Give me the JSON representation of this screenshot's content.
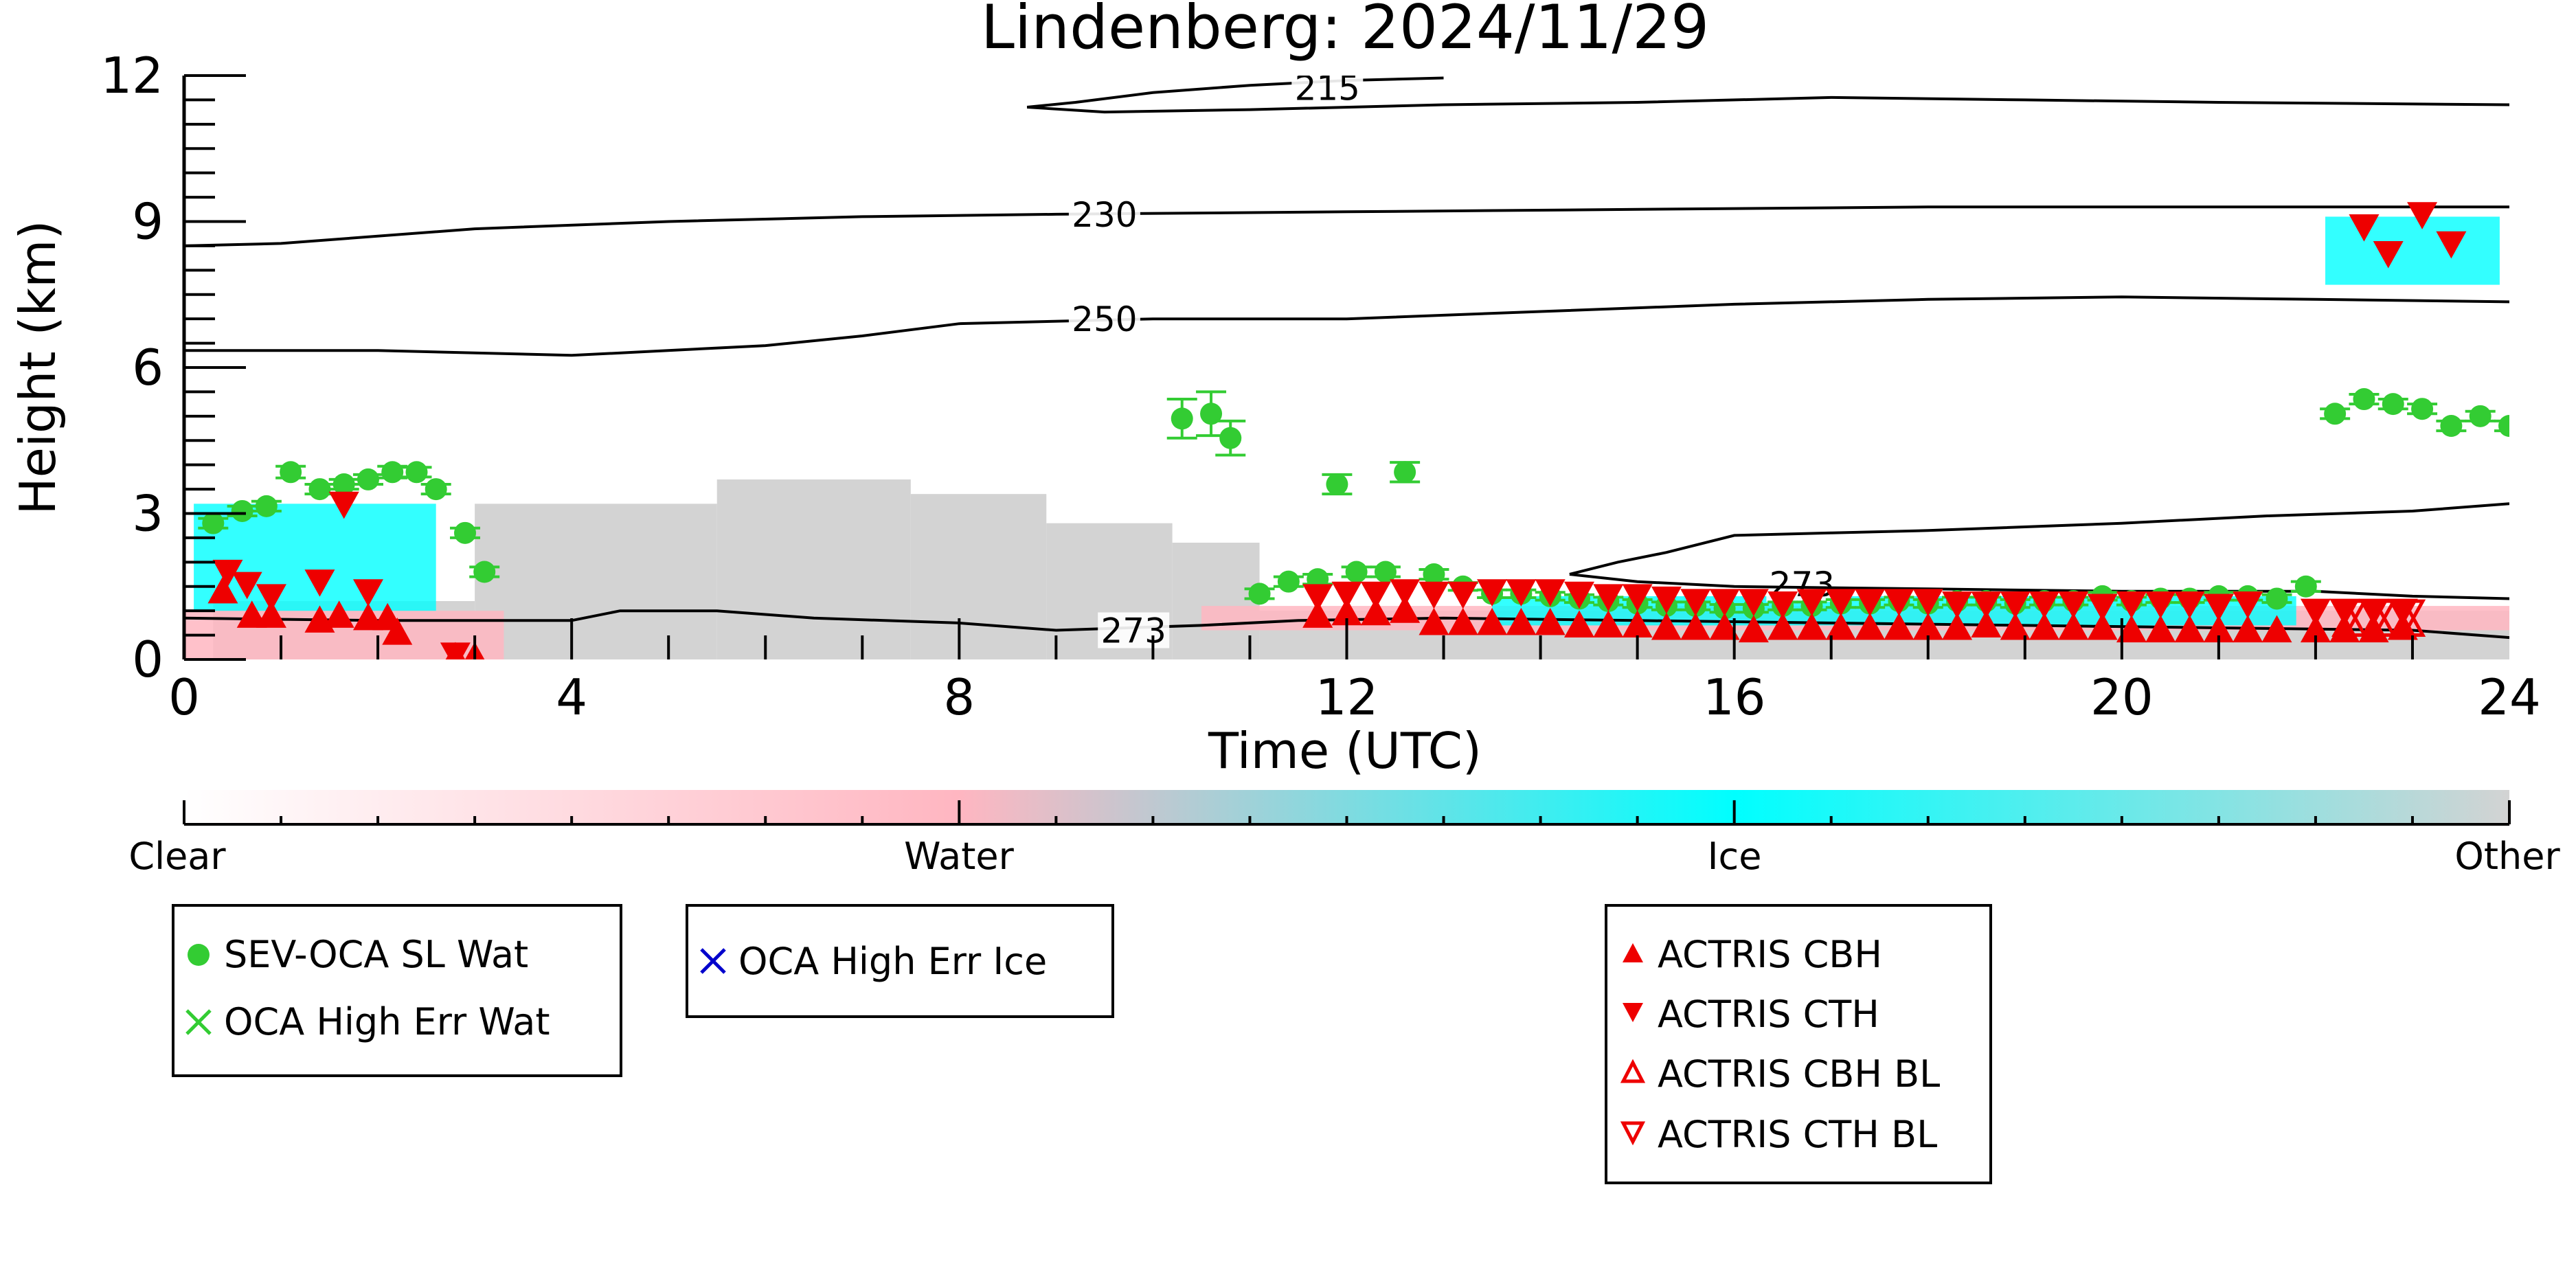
{
  "chart_data": {
    "type": "scatter",
    "title": "Lindenberg: 2024/11/29",
    "xlabel": "Time (UTC)",
    "ylabel": "Height (km)",
    "xlim": [
      0,
      24
    ],
    "ylim": [
      0,
      12
    ],
    "x_ticks": [
      0,
      4,
      8,
      12,
      16,
      20,
      24
    ],
    "y_ticks": [
      0,
      3,
      6,
      9,
      12
    ],
    "grid": false,
    "background_mask": {
      "gray_columns": [
        {
          "x0": 0.3,
          "x1": 3.0,
          "top": 1.2
        },
        {
          "x0": 3.0,
          "x1": 5.5,
          "top": 3.2
        },
        {
          "x0": 5.5,
          "x1": 7.5,
          "top": 3.7
        },
        {
          "x0": 7.5,
          "x1": 8.9,
          "top": 3.4
        },
        {
          "x0": 8.9,
          "x1": 10.2,
          "top": 2.8
        },
        {
          "x0": 10.2,
          "x1": 11.1,
          "top": 2.4
        },
        {
          "x0": 11.1,
          "x1": 24.0,
          "top": 1.0
        }
      ],
      "ice_patches": [
        {
          "x0": 0.1,
          "x1": 2.6,
          "y0": 1.0,
          "y1": 3.2
        },
        {
          "x0": 13.5,
          "x1": 21.8,
          "y0": 0.7,
          "y1": 1.3
        },
        {
          "x0": 22.1,
          "x1": 23.9,
          "y0": 7.7,
          "y1": 9.1
        }
      ],
      "water_patches": [
        {
          "x0": 0.0,
          "x1": 3.3,
          "y0": 0.0,
          "y1": 1.0
        },
        {
          "x0": 10.5,
          "x1": 24.0,
          "y0": 0.6,
          "y1": 1.1
        }
      ]
    },
    "contours": [
      {
        "label": "215",
        "label_pos": [
          11.8,
          11.75
        ],
        "points": [
          [
            8.7,
            11.35
          ],
          [
            9.2,
            11.45
          ],
          [
            10.0,
            11.65
          ],
          [
            11.0,
            11.8
          ],
          [
            12.0,
            11.9
          ],
          [
            13.0,
            11.95
          ]
        ]
      },
      {
        "label": "",
        "label_pos": null,
        "points": [
          [
            8.7,
            11.35
          ],
          [
            9.5,
            11.25
          ],
          [
            11.0,
            11.3
          ],
          [
            13.0,
            11.4
          ],
          [
            15.0,
            11.45
          ],
          [
            17.0,
            11.55
          ],
          [
            19.0,
            11.5
          ],
          [
            21.0,
            11.45
          ],
          [
            24.0,
            11.4
          ]
        ]
      },
      {
        "label": "230",
        "label_pos": [
          9.5,
          9.15
        ],
        "points": [
          [
            0.0,
            8.5
          ],
          [
            1.0,
            8.55
          ],
          [
            3.0,
            8.85
          ],
          [
            5.0,
            9.0
          ],
          [
            7.0,
            9.1
          ],
          [
            9.0,
            9.15
          ],
          [
            12.0,
            9.2
          ],
          [
            15.0,
            9.25
          ],
          [
            18.0,
            9.3
          ],
          [
            21.0,
            9.3
          ],
          [
            24.0,
            9.3
          ]
        ]
      },
      {
        "label": "250",
        "label_pos": [
          9.5,
          7.0
        ],
        "points": [
          [
            0.0,
            6.35
          ],
          [
            2.0,
            6.35
          ],
          [
            4.0,
            6.25
          ],
          [
            6.0,
            6.45
          ],
          [
            7.0,
            6.65
          ],
          [
            8.0,
            6.9
          ],
          [
            10.0,
            7.0
          ],
          [
            12.0,
            7.0
          ],
          [
            14.0,
            7.15
          ],
          [
            16.0,
            7.3
          ],
          [
            18.0,
            7.4
          ],
          [
            20.0,
            7.45
          ],
          [
            22.0,
            7.4
          ],
          [
            24.0,
            7.35
          ]
        ]
      },
      {
        "label": "273",
        "label_pos": [
          16.7,
          1.55
        ],
        "points": [
          [
            14.3,
            1.75
          ],
          [
            14.8,
            2.0
          ],
          [
            15.3,
            2.2
          ],
          [
            16.0,
            2.55
          ],
          [
            17.0,
            2.6
          ],
          [
            18.0,
            2.65
          ],
          [
            20.0,
            2.8
          ],
          [
            21.5,
            2.95
          ],
          [
            23.0,
            3.05
          ],
          [
            24.0,
            3.2
          ]
        ]
      },
      {
        "label": "",
        "label_pos": null,
        "points": [
          [
            14.3,
            1.75
          ],
          [
            15.0,
            1.6
          ],
          [
            16.0,
            1.5
          ],
          [
            18.0,
            1.45
          ],
          [
            20.0,
            1.4
          ],
          [
            22.0,
            1.4
          ],
          [
            23.0,
            1.3
          ],
          [
            24.0,
            1.25
          ]
        ]
      },
      {
        "label": "273",
        "label_pos": [
          9.8,
          0.6
        ],
        "points": [
          [
            0.0,
            0.85
          ],
          [
            2.0,
            0.8
          ],
          [
            4.0,
            0.8
          ],
          [
            4.5,
            1.0
          ],
          [
            5.5,
            1.0
          ],
          [
            6.5,
            0.85
          ],
          [
            8.0,
            0.75
          ],
          [
            9.0,
            0.6
          ],
          [
            10.5,
            0.7
          ],
          [
            11.5,
            0.8
          ],
          [
            13.0,
            0.85
          ],
          [
            15.0,
            0.8
          ],
          [
            17.0,
            0.75
          ],
          [
            19.0,
            0.7
          ],
          [
            21.0,
            0.65
          ],
          [
            23.0,
            0.6
          ],
          [
            24.0,
            0.45
          ]
        ]
      }
    ],
    "series": [
      {
        "name": "SEV-OCA SL Wat",
        "marker": "circle",
        "color": "#33cc33",
        "x": [
          0.3,
          0.6,
          0.85,
          1.1,
          1.4,
          1.65,
          1.9,
          2.15,
          2.4,
          2.6,
          2.9,
          3.1,
          10.3,
          10.6,
          10.8,
          11.1,
          11.4,
          11.7,
          11.9,
          12.1,
          12.4,
          12.6,
          12.9,
          13.2,
          13.5,
          13.8,
          14.1,
          14.4,
          14.7,
          15.0,
          15.3,
          15.6,
          15.9,
          16.2,
          16.5,
          16.8,
          17.1,
          17.4,
          17.7,
          18.0,
          18.3,
          18.6,
          18.9,
          19.2,
          19.5,
          19.8,
          20.1,
          20.4,
          20.7,
          21.0,
          21.3,
          21.6,
          21.9,
          22.2,
          22.5,
          22.8,
          23.1,
          23.4,
          23.7,
          24.0
        ],
        "y": [
          2.8,
          3.05,
          3.15,
          3.85,
          3.5,
          3.6,
          3.7,
          3.85,
          3.85,
          3.5,
          2.6,
          1.8,
          4.95,
          5.05,
          4.55,
          1.35,
          1.6,
          1.65,
          3.6,
          1.8,
          1.8,
          3.85,
          1.75,
          1.5,
          1.35,
          1.35,
          1.3,
          1.25,
          1.2,
          1.15,
          1.1,
          1.1,
          1.05,
          1.05,
          1.1,
          1.1,
          1.15,
          1.15,
          1.2,
          1.15,
          1.2,
          1.2,
          1.15,
          1.2,
          1.2,
          1.3,
          1.2,
          1.25,
          1.25,
          1.3,
          1.3,
          1.25,
          1.5,
          5.05,
          5.35,
          5.25,
          5.15,
          4.8,
          5.0,
          4.8
        ],
        "yerr": [
          0.1,
          0.1,
          0.1,
          0.12,
          0.1,
          0.1,
          0.1,
          0.12,
          0.1,
          0.1,
          0.1,
          0.1,
          0.4,
          0.45,
          0.35,
          0.1,
          0.1,
          0.1,
          0.2,
          0.1,
          0.1,
          0.2,
          0.1,
          0.08,
          0.08,
          0.08,
          0.08,
          0.08,
          0.08,
          0.08,
          0.08,
          0.08,
          0.08,
          0.08,
          0.08,
          0.08,
          0.08,
          0.08,
          0.08,
          0.08,
          0.08,
          0.08,
          0.08,
          0.08,
          0.08,
          0.08,
          0.08,
          0.08,
          0.08,
          0.08,
          0.08,
          0.08,
          0.1,
          0.1,
          0.1,
          0.1,
          0.1,
          0.1,
          0.1,
          0.1
        ]
      },
      {
        "name": "OCA High Err Wat",
        "marker": "x",
        "color": "#33cc33",
        "x": [],
        "y": []
      },
      {
        "name": "OCA High Err Ice",
        "marker": "x",
        "color": "#0000cc",
        "x": [],
        "y": []
      },
      {
        "name": "ACTRIS CBH",
        "marker": "triangle-up",
        "color": "#ee0000",
        "x": [
          0.4,
          0.7,
          0.9,
          1.4,
          1.6,
          1.9,
          2.1,
          2.2,
          2.8,
          3.0,
          11.7,
          12.0,
          12.3,
          12.6,
          12.9,
          13.2,
          13.5,
          13.8,
          14.1,
          14.4,
          14.7,
          15.0,
          15.3,
          15.6,
          15.9,
          16.2,
          16.5,
          16.8,
          17.1,
          17.4,
          17.7,
          18.0,
          18.3,
          18.6,
          18.9,
          19.2,
          19.5,
          19.8,
          20.1,
          20.4,
          20.7,
          21.0,
          21.3,
          21.6,
          22.0,
          22.3,
          22.6,
          22.9
        ],
        "y": [
          1.4,
          0.9,
          0.9,
          0.8,
          0.9,
          0.85,
          0.85,
          0.55,
          0.05,
          0.05,
          0.9,
          0.95,
          0.95,
          1.0,
          0.75,
          0.75,
          0.75,
          0.75,
          0.75,
          0.7,
          0.7,
          0.7,
          0.65,
          0.65,
          0.65,
          0.6,
          0.65,
          0.65,
          0.65,
          0.65,
          0.65,
          0.65,
          0.65,
          0.7,
          0.65,
          0.65,
          0.65,
          0.65,
          0.6,
          0.6,
          0.6,
          0.6,
          0.6,
          0.6,
          0.6,
          0.6,
          0.6,
          0.65
        ]
      },
      {
        "name": "ACTRIS CTH",
        "marker": "triangle-down",
        "color": "#ee0000",
        "x": [
          0.45,
          0.65,
          0.9,
          1.4,
          1.65,
          1.9,
          2.8,
          11.7,
          12.0,
          12.3,
          12.6,
          12.9,
          13.2,
          13.5,
          13.8,
          14.1,
          14.4,
          14.7,
          15.0,
          15.3,
          15.6,
          15.9,
          16.2,
          16.5,
          16.8,
          17.1,
          17.4,
          17.7,
          18.0,
          18.3,
          18.6,
          18.9,
          19.2,
          19.5,
          19.8,
          20.1,
          20.4,
          20.7,
          21.0,
          21.3,
          22.0,
          22.3,
          22.6,
          22.9,
          22.5,
          22.75,
          23.1,
          23.4
        ],
        "y": [
          1.8,
          1.55,
          1.3,
          1.6,
          3.2,
          1.4,
          0.1,
          1.3,
          1.35,
          1.35,
          1.4,
          1.35,
          1.35,
          1.4,
          1.4,
          1.4,
          1.35,
          1.3,
          1.3,
          1.25,
          1.2,
          1.2,
          1.2,
          1.15,
          1.2,
          1.2,
          1.2,
          1.2,
          1.2,
          1.15,
          1.15,
          1.15,
          1.15,
          1.15,
          1.1,
          1.15,
          1.15,
          1.15,
          1.1,
          1.15,
          1.0,
          1.0,
          1.0,
          1.0,
          8.9,
          8.35,
          9.15,
          8.55
        ]
      },
      {
        "name": "ACTRIS CBH BL",
        "marker": "triangle-up-open",
        "color": "#ee0000",
        "x": [
          22.35,
          22.65,
          22.95
        ],
        "y": [
          0.75,
          0.75,
          0.75
        ]
      },
      {
        "name": "ACTRIS CTH BL",
        "marker": "triangle-down-open",
        "color": "#ee0000",
        "x": [
          22.35,
          22.65,
          22.95
        ],
        "y": [
          0.95,
          0.95,
          0.95
        ]
      }
    ],
    "colorbar": {
      "labels": [
        "Clear",
        "Water",
        "Ice",
        "Other"
      ],
      "colors": [
        "#ffffff",
        "#ffb6c1",
        "#00ffff",
        "#d3d3d3"
      ]
    },
    "legends": [
      {
        "entries": [
          "SEV-OCA SL Wat",
          "OCA High Err Wat"
        ]
      },
      {
        "entries": [
          "OCA High Err Ice"
        ]
      },
      {
        "entries": [
          "ACTRIS CBH",
          "ACTRIS CTH",
          "ACTRIS CBH BL",
          "ACTRIS CTH BL"
        ]
      }
    ]
  }
}
